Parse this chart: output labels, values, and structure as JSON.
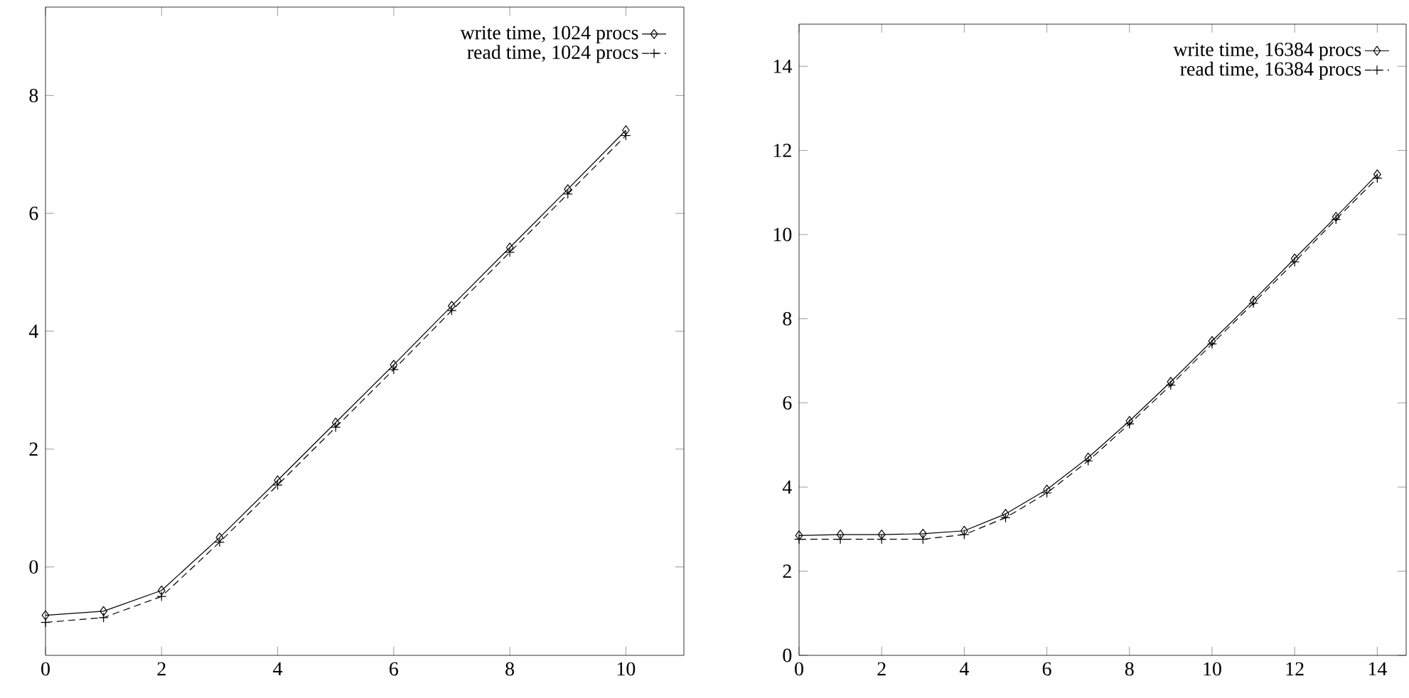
{
  "chart_data": [
    {
      "type": "line",
      "x": [
        0,
        1,
        2,
        3,
        4,
        5,
        6,
        7,
        8,
        9,
        10
      ],
      "xlim": [
        0,
        11
      ],
      "ylim": [
        -1.5,
        9.5
      ],
      "xticks": [
        0,
        2,
        4,
        6,
        8,
        10
      ],
      "yticks": [
        0,
        2,
        4,
        6,
        8
      ],
      "legend": "top right",
      "series": [
        {
          "name": "write time, 1024 procs",
          "color": "#000000",
          "marker": "diamond",
          "line_style": "solid",
          "values": [
            -0.82,
            -0.75,
            -0.4,
            0.5,
            1.47,
            2.45,
            3.43,
            4.43,
            5.42,
            6.41,
            7.41
          ]
        },
        {
          "name": "read time, 1024 procs",
          "color": "#000000",
          "marker": "cross",
          "line_style": "dashed",
          "values": [
            -0.94,
            -0.86,
            -0.5,
            0.42,
            1.39,
            2.37,
            3.35,
            4.35,
            5.34,
            6.33,
            7.32
          ]
        }
      ]
    },
    {
      "type": "line",
      "x": [
        0,
        1,
        2,
        3,
        4,
        5,
        6,
        7,
        8,
        9,
        10,
        11,
        12,
        13,
        14
      ],
      "xlim": [
        0,
        14.7
      ],
      "ylim": [
        0,
        15
      ],
      "xticks": [
        0,
        2,
        4,
        6,
        8,
        10,
        12,
        14
      ],
      "yticks": [
        0,
        2,
        4,
        6,
        8,
        10,
        12,
        14
      ],
      "legend": "top right",
      "series": [
        {
          "name": "write time, 16384 procs",
          "color": "#000000",
          "marker": "diamond",
          "line_style": "solid",
          "values": [
            2.85,
            2.87,
            2.87,
            2.89,
            2.96,
            3.36,
            3.94,
            4.7,
            5.57,
            6.5,
            7.47,
            8.43,
            9.43,
            10.42,
            11.43
          ]
        },
        {
          "name": "read time, 16384 procs",
          "color": "#000000",
          "marker": "cross",
          "line_style": "dashed",
          "values": [
            2.76,
            2.76,
            2.76,
            2.76,
            2.87,
            3.27,
            3.86,
            4.62,
            5.5,
            6.42,
            7.4,
            8.37,
            9.35,
            10.36,
            11.34
          ]
        }
      ]
    }
  ]
}
